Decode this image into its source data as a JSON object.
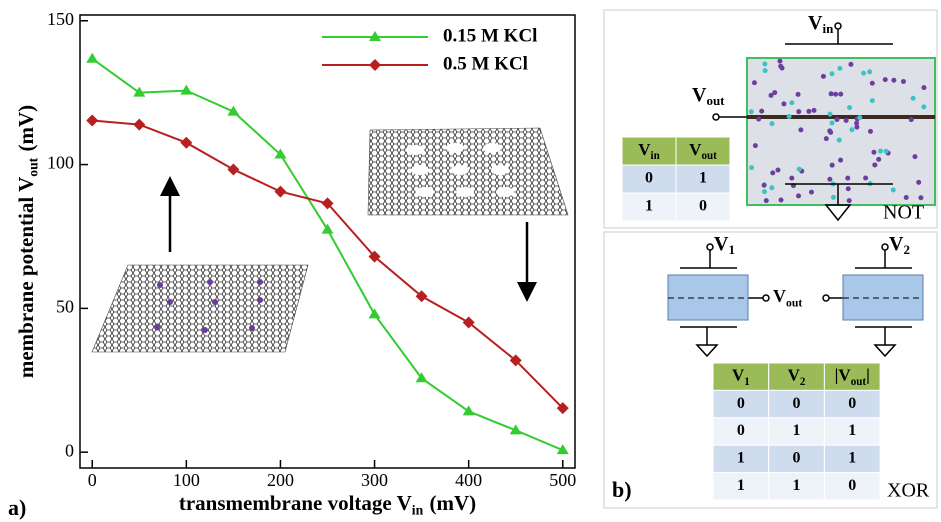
{
  "chart_data": {
    "type": "line",
    "xlabel": {
      "main": "transmembrane voltage V",
      "sub": "in",
      "tail": "(mV)"
    },
    "ylabel": {
      "main": "membrane potential V",
      "sub": "out",
      "tail": "(mV)"
    },
    "x": [
      0,
      50,
      100,
      150,
      200,
      250,
      300,
      350,
      400,
      450,
      500
    ],
    "series": [
      {
        "name": "0.15 M KCl",
        "color": "#33cc33",
        "marker": "triangle",
        "values": [
          136.8,
          125,
          125.7,
          118.4,
          103.5,
          77.4,
          47.9,
          25.7,
          14.2,
          7.6,
          0.7
        ]
      },
      {
        "name": "0.5 M KCl",
        "color": "#b82020",
        "marker": "diamond",
        "values": [
          115.3,
          113.9,
          107.6,
          98.3,
          90.6,
          86.5,
          68,
          54.2,
          45.1,
          31.9,
          15.3
        ]
      }
    ],
    "xlim": [
      -13,
      513
    ],
    "ylim": [
      -5.5,
      152
    ],
    "xticks": [
      0,
      100,
      200,
      300,
      400,
      500
    ],
    "yticks": [
      0,
      50,
      100,
      150
    ]
  },
  "panel_labels": [
    "a)",
    "b)"
  ],
  "not_gate": {
    "input": {
      "main": "V",
      "sub": "in"
    },
    "output": {
      "main": "V",
      "sub": "out"
    },
    "name": "NOT",
    "table": {
      "header": [
        {
          "main": "V",
          "sub": "in"
        },
        {
          "main": "V",
          "sub": "out"
        }
      ],
      "rows": [
        [
          "0",
          "1"
        ],
        [
          "1",
          "0"
        ]
      ]
    }
  },
  "xor_gate": {
    "input1": {
      "main": "V",
      "sub": "1"
    },
    "input2": {
      "main": "V",
      "sub": "2"
    },
    "output": {
      "main": "V",
      "sub": "out"
    },
    "name": "XOR",
    "table": {
      "header": [
        {
          "main": "V",
          "sub": "1"
        },
        {
          "main": "V",
          "sub": "2"
        },
        {
          "main": "|V",
          "sub": "out",
          "tail": "|"
        }
      ],
      "rows": [
        [
          "0",
          "0",
          "0"
        ],
        [
          "0",
          "1",
          "1"
        ],
        [
          "1",
          "0",
          "1"
        ],
        [
          "1",
          "1",
          "0"
        ]
      ]
    }
  }
}
